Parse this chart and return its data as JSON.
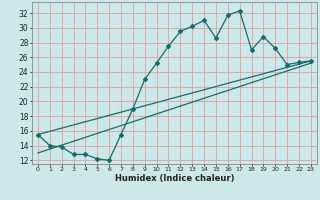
{
  "xlabel": "Humidex (Indice chaleur)",
  "xlim": [
    -0.5,
    23.5
  ],
  "ylim": [
    11.5,
    33.5
  ],
  "yticks": [
    12,
    14,
    16,
    18,
    20,
    22,
    24,
    26,
    28,
    30,
    32
  ],
  "xticks": [
    0,
    1,
    2,
    3,
    4,
    5,
    6,
    7,
    8,
    9,
    10,
    11,
    12,
    13,
    14,
    15,
    16,
    17,
    18,
    19,
    20,
    21,
    22,
    23
  ],
  "bg_color": "#cce8e8",
  "grid_color": "#dda0a0",
  "line_color": "#1a6b6b",
  "line1_x": [
    0,
    1,
    2,
    3,
    4,
    5,
    6,
    7,
    8,
    9,
    10,
    11,
    12,
    13,
    14,
    15,
    16,
    17,
    18,
    19,
    20,
    21,
    22,
    23
  ],
  "line1_y": [
    15.5,
    14.0,
    13.8,
    12.8,
    12.8,
    12.2,
    12.0,
    15.5,
    19.0,
    23.0,
    25.2,
    27.5,
    29.5,
    30.2,
    31.0,
    28.6,
    31.7,
    32.3,
    27.0,
    28.8,
    27.2,
    25.0,
    25.3,
    25.5
  ],
  "line2_x": [
    0,
    23
  ],
  "line2_y": [
    15.5,
    25.5
  ],
  "line3_x": [
    0,
    23
  ],
  "line3_y": [
    13.0,
    25.2
  ]
}
